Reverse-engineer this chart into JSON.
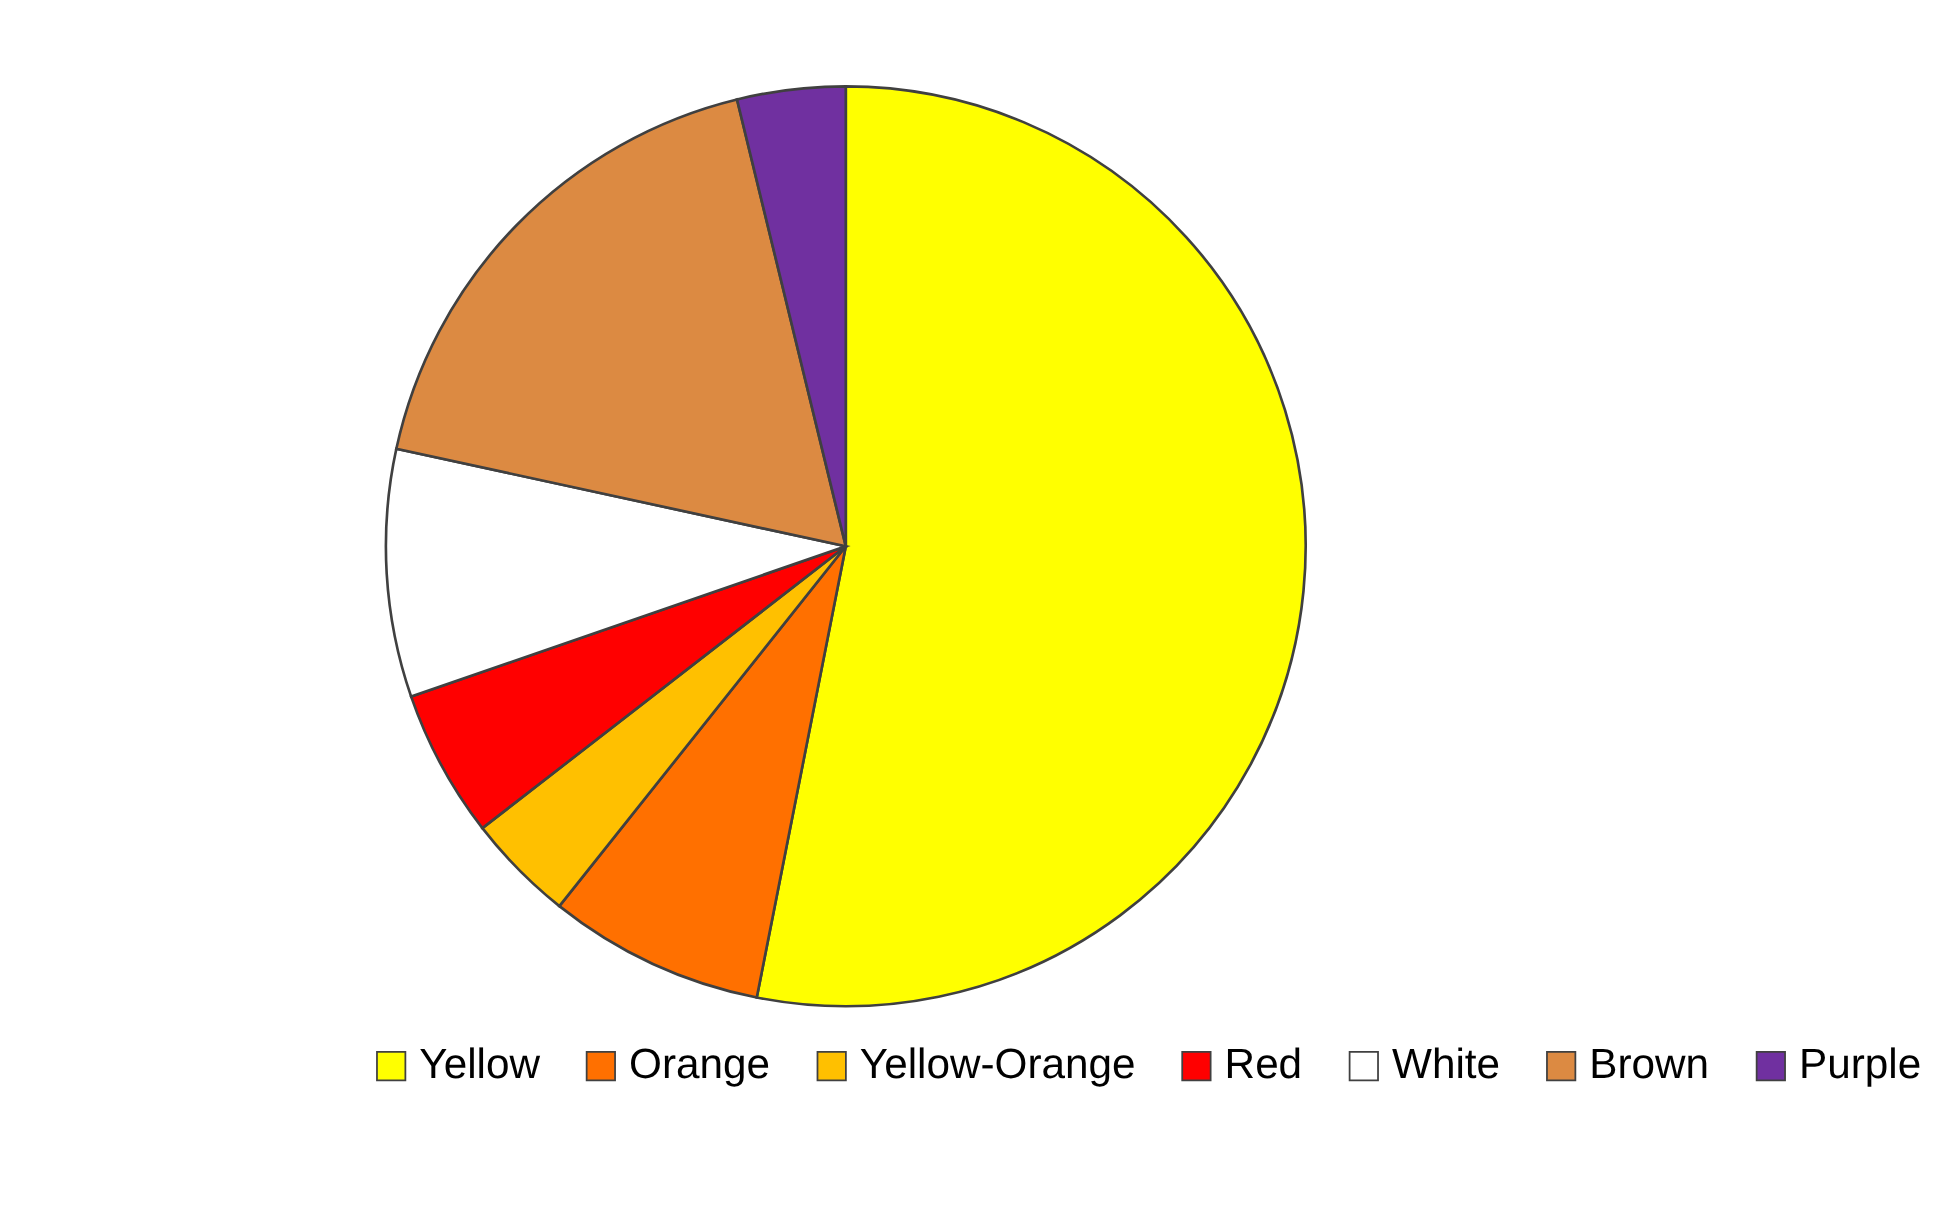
{
  "chart_data": {
    "type": "pie",
    "categories": [
      "Yellow",
      "Orange",
      "Yellow-Orange",
      "Red",
      "White",
      "Brown",
      "Purple"
    ],
    "values": [
      53.1,
      7.6,
      3.8,
      5.2,
      8.7,
      17.8,
      3.8
    ],
    "colors": [
      "#ffff00",
      "#ff7000",
      "#ffc000",
      "#ff0000",
      "#ffffff",
      "#dc8a42",
      "#7030a0"
    ],
    "legend": "bottom"
  }
}
